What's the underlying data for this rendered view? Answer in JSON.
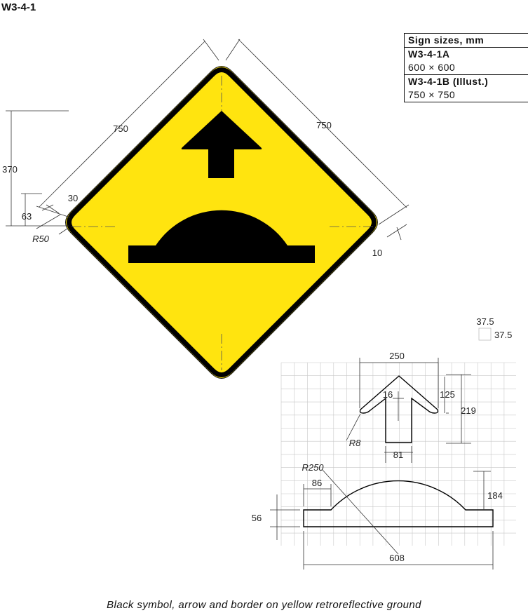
{
  "sign_code": "W3-4-1",
  "sizes_table": {
    "header": "Sign sizes, mm",
    "rows": [
      {
        "code": "W3-4-1A",
        "size": "600 × 600"
      },
      {
        "code": "W3-4-1B (Illust.)",
        "size": "750 × 750"
      }
    ]
  },
  "colors": {
    "yellow": "#FFE40F",
    "black": "#000000",
    "grid": "#c8c8c8",
    "dimension": "#333333"
  },
  "sign_dimensions": {
    "side_left": "750",
    "side_right": "750",
    "half_height": "370",
    "bottom_offset": "63",
    "border_inset": "30",
    "corner_radius": "R50",
    "edge_margin": "10"
  },
  "grid_scale": {
    "cell_w": "37.5",
    "cell_h": "37.5"
  },
  "symbol_dimensions": {
    "arrow_width": "250",
    "arrow_head_height": "125",
    "arrow_height": "219",
    "barb_depth": "16",
    "tip_radius": "R8",
    "stem_width": "81",
    "hump_radius": "R250",
    "bar_end_length": "86",
    "hump_height": "184",
    "bar_height": "56",
    "total_width": "608"
  },
  "caption": "Black symbol, arrow and border on yellow retroreflective ground"
}
